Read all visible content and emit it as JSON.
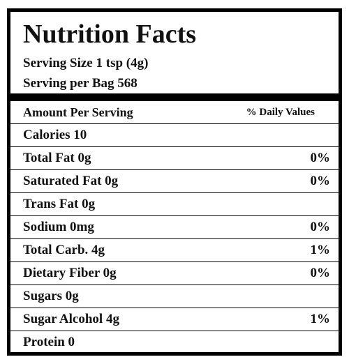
{
  "header": {
    "title": "Nutrition Facts",
    "serving_size": "Serving Size 1 tsp (4g)",
    "servings": "Serving per Bag 568"
  },
  "table": {
    "columns": [
      "Amount Per Serving",
      "% Daily Values"
    ],
    "rows": [
      {
        "label": "Calories 10"
      },
      {
        "label": "Total Fat 0g",
        "dv": "0%"
      },
      {
        "label": "Saturated Fat 0g",
        "dv": "0%"
      },
      {
        "label": "Trans Fat 0g"
      },
      {
        "label": "Sodium 0mg",
        "dv": "0%"
      },
      {
        "label": "Total Carb. 4g",
        "dv": "1%"
      },
      {
        "label": "Dietary Fiber 0g",
        "dv": "0%"
      },
      {
        "label": "Sugars 0g"
      },
      {
        "label": "Sugar Alcohol 4g",
        "dv": "1%"
      },
      {
        "label": "Protein 0"
      }
    ]
  }
}
